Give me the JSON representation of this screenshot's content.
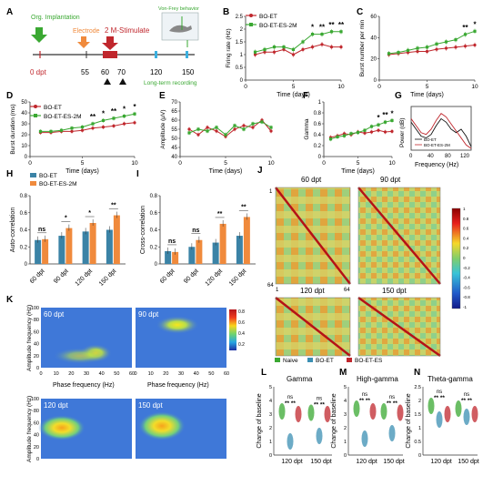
{
  "panels": {
    "A": "A",
    "B": "B",
    "C": "C",
    "D": "D",
    "E": "E",
    "F": "F",
    "G": "G",
    "H": "H",
    "I": "I",
    "J": "J",
    "K": "K",
    "L": "L",
    "M": "M",
    "N": "N"
  },
  "timeline": {
    "org_implantation": "Org. Implantation",
    "electrode": "Electrode",
    "stimulate": "2 M-Stimulate",
    "vonfrey": "Von-Frey behavior",
    "longterm": "Long-term recording",
    "ticks": [
      "0 dpt",
      "55",
      "60",
      "70",
      "120",
      "150"
    ]
  },
  "legend": {
    "bo_et": "BO-ET",
    "bo_et_es_2m": "BO-ET-ES-2M",
    "naive": "Naive",
    "bo_es": "BO-ET-ES"
  },
  "axis": {
    "time_days": "Time (days)",
    "firing_rate": "Firing rate (Hz)",
    "burst_number": "Burst number per min",
    "burst_duration": "Burst duration (ms)",
    "amplitude": "Amplitude (μV)",
    "gamma": "Gamma",
    "power": "Power (dB)",
    "frequency": "Frequency (Hz)",
    "auto_corr": "Auto-correlation",
    "cross_corr": "Cross-correlation",
    "amp_freq": "Amplitude frequency (Hz)",
    "phase_freq": "Phase frequency (Hz)",
    "change_baseline": "Change of baseline"
  },
  "colors": {
    "bo_et": "#c0272d",
    "es_2m": "#3aa832",
    "bar_blue": "#3b83a6",
    "bar_orange": "#f08a3c",
    "naive": "#3aa832",
    "bo_et_blue": "#3b8fb3",
    "bo_es_red": "#c0272d"
  },
  "dpt_labels": [
    "60 dpt",
    "90 dpt",
    "120 dpt",
    "150 dpt"
  ],
  "ns": "ns",
  "star1": "*",
  "star2": "**",
  "panel_L_title": "Gamma",
  "panel_M_title": "High-gamma",
  "panel_N_title": "Theta-gamma",
  "group_120": "120 dpt",
  "group_150": "150 dpt",
  "colorbar_labels": [
    "1",
    "0.8",
    "0.6",
    "0.4",
    "0.2",
    "0",
    "-0.2",
    "-0.4",
    "-0.6",
    "-0.8",
    "-1"
  ],
  "kcolor_labels": [
    "0.8",
    "0.6",
    "0.4",
    "0.2"
  ],
  "chart_data": [
    {
      "panel": "B",
      "type": "line",
      "ylabel": "Firing rate (Hz)",
      "xlabel": "Time (days)",
      "x": [
        1,
        2,
        3,
        4,
        5,
        6,
        7,
        8,
        9,
        10
      ],
      "ylim": [
        0,
        2.5
      ],
      "xlim": [
        0,
        10
      ],
      "series": [
        {
          "name": "BO-ET",
          "values": [
            1.0,
            1.1,
            1.1,
            1.2,
            1.0,
            1.2,
            1.3,
            1.4,
            1.3,
            1.3
          ]
        },
        {
          "name": "BO-ET-ES-2M",
          "values": [
            1.1,
            1.2,
            1.3,
            1.3,
            1.2,
            1.5,
            1.8,
            1.8,
            1.9,
            1.9
          ]
        }
      ]
    },
    {
      "panel": "C",
      "type": "line",
      "ylabel": "Burst number per min",
      "xlabel": "Time (days)",
      "x": [
        1,
        2,
        3,
        4,
        5,
        6,
        7,
        8,
        9,
        10
      ],
      "ylim": [
        0,
        60
      ],
      "xlim": [
        0,
        10
      ],
      "series": [
        {
          "name": "BO-ET",
          "values": [
            24,
            25,
            26,
            27,
            27,
            29,
            30,
            31,
            32,
            33
          ]
        },
        {
          "name": "BO-ET-ES-2M",
          "values": [
            25,
            26,
            28,
            30,
            31,
            34,
            36,
            38,
            43,
            46
          ]
        }
      ]
    },
    {
      "panel": "D",
      "type": "line",
      "ylabel": "Burst duration (ms)",
      "xlabel": "Time (days)",
      "x": [
        1,
        2,
        3,
        4,
        5,
        6,
        7,
        8,
        9,
        10
      ],
      "ylim": [
        0,
        50
      ],
      "xlim": [
        0,
        10
      ],
      "series": [
        {
          "name": "BO-ET",
          "values": [
            22,
            22,
            23,
            23,
            24,
            26,
            27,
            28,
            30,
            31
          ]
        },
        {
          "name": "BO-ET-ES-2M",
          "values": [
            23,
            23,
            24,
            26,
            27,
            30,
            33,
            35,
            37,
            39
          ]
        }
      ]
    },
    {
      "panel": "E",
      "type": "line",
      "ylabel": "Amplitude (μV)",
      "xlabel": "Time (days)",
      "x": [
        1,
        2,
        3,
        4,
        5,
        6,
        7,
        8,
        9,
        10
      ],
      "ylim": [
        40,
        70
      ],
      "xlim": [
        0,
        10
      ],
      "series": [
        {
          "name": "BO-ET",
          "values": [
            55,
            52,
            56,
            54,
            51,
            55,
            57,
            56,
            60,
            54
          ]
        },
        {
          "name": "BO-ET-ES-2M",
          "values": [
            53,
            55,
            54,
            56,
            52,
            57,
            55,
            58,
            59,
            56
          ]
        }
      ]
    },
    {
      "panel": "F",
      "type": "line",
      "ylabel": "Gamma",
      "xlabel": "Time (days)",
      "x": [
        1,
        2,
        3,
        4,
        5,
        6,
        7,
        8,
        9,
        10
      ],
      "ylim": [
        0,
        1
      ],
      "xlim": [
        0,
        10
      ],
      "series": [
        {
          "name": "BO-ET",
          "values": [
            0.35,
            0.38,
            0.42,
            0.4,
            0.45,
            0.43,
            0.45,
            0.48,
            0.45,
            0.46
          ]
        },
        {
          "name": "BO-ET-ES-2M",
          "values": [
            0.32,
            0.36,
            0.38,
            0.42,
            0.44,
            0.48,
            0.55,
            0.58,
            0.63,
            0.66
          ]
        }
      ]
    },
    {
      "panel": "G",
      "type": "line",
      "ylabel": "Power (dB)",
      "xlabel": "Frequency (Hz)",
      "xlim": [
        0,
        120
      ],
      "ylim": [
        -20,
        5
      ],
      "x": [
        0,
        10,
        20,
        30,
        40,
        50,
        60,
        70,
        80,
        90,
        100,
        110,
        120
      ],
      "series": [
        {
          "name": "BO-ET",
          "values": [
            -4,
            -8,
            -12,
            -13,
            -11,
            -6,
            -2,
            -4,
            -8,
            -10,
            -8,
            -12,
            -18
          ]
        },
        {
          "name": "BO-ET-ES-2M",
          "values": [
            -2,
            -6,
            -10,
            -11,
            -8,
            -3,
            1,
            -1,
            -5,
            -9,
            -13,
            -17,
            -19
          ]
        }
      ]
    },
    {
      "panel": "H",
      "type": "bar",
      "ylabel": "Auto-correlation",
      "categories": [
        "60 dpt",
        "90 dpt",
        "120 dpt",
        "150 dpt"
      ],
      "ylim": [
        0,
        0.8
      ],
      "series": [
        {
          "name": "BO-ET",
          "values": [
            0.28,
            0.33,
            0.38,
            0.4
          ]
        },
        {
          "name": "BO-ET-ES-2M",
          "values": [
            0.29,
            0.42,
            0.48,
            0.57
          ]
        }
      ]
    },
    {
      "panel": "I",
      "type": "bar",
      "ylabel": "Cross-correlation",
      "categories": [
        "60 dpt",
        "90 dpt",
        "120 dpt",
        "150 dpt"
      ],
      "ylim": [
        0,
        0.8
      ],
      "series": [
        {
          "name": "BO-ET",
          "values": [
            0.15,
            0.2,
            0.25,
            0.33
          ]
        },
        {
          "name": "BO-ET-ES-2M",
          "values": [
            0.14,
            0.28,
            0.47,
            0.55
          ]
        }
      ]
    }
  ]
}
